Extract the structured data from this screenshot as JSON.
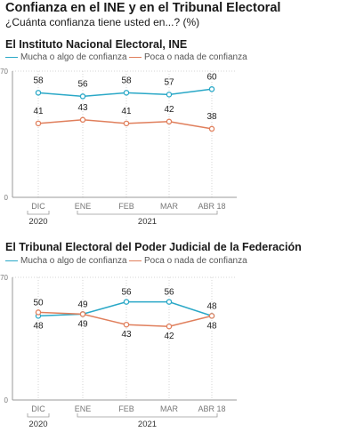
{
  "header": {
    "title": "Confianza en el INE y en el Tribunal Electoral",
    "subtitle": "¿Cuánta confianza tiene usted en...?  (%)"
  },
  "colors": {
    "series1": "#2aa8c7",
    "series2": "#e07f5c",
    "axis": "#9a9a9a",
    "grid": "#d4d4d4"
  },
  "chart_data": [
    {
      "type": "line",
      "title": "El Instituto Nacional Electoral, INE",
      "categories": [
        "DIC",
        "ENE",
        "FEB",
        "MAR",
        "ABR 18"
      ],
      "year_groups": [
        {
          "label": "2020",
          "categories": [
            "DIC"
          ]
        },
        {
          "label": "2021",
          "categories": [
            "ENE",
            "FEB",
            "MAR",
            "ABR 18"
          ]
        }
      ],
      "ylim": [
        0,
        70
      ],
      "yticks": [
        0,
        70
      ],
      "grid": true,
      "legend_placement": "top",
      "series": [
        {
          "name": "Mucha o algo de confianza",
          "color": "#2aa8c7",
          "values": [
            58,
            56,
            58,
            57,
            60
          ]
        },
        {
          "name": "Poca o nada de confianza",
          "color": "#e07f5c",
          "values": [
            41,
            43,
            41,
            42,
            38
          ]
        }
      ]
    },
    {
      "type": "line",
      "title": "El Tribunal Electoral del Poder Judicial de la Federación",
      "categories": [
        "DIC",
        "ENE",
        "FEB",
        "MAR",
        "ABR 18"
      ],
      "year_groups": [
        {
          "label": "2020",
          "categories": [
            "DIC"
          ]
        },
        {
          "label": "2021",
          "categories": [
            "ENE",
            "FEB",
            "MAR",
            "ABR 18"
          ]
        }
      ],
      "ylim": [
        0,
        70
      ],
      "yticks": [
        0,
        70
      ],
      "grid": true,
      "legend_placement": "top",
      "series": [
        {
          "name": "Mucha o algo de confianza",
          "color": "#2aa8c7",
          "values": [
            48,
            49,
            56,
            56,
            48
          ]
        },
        {
          "name": "Poca o nada de confianza",
          "color": "#e07f5c",
          "values": [
            50,
            49,
            43,
            42,
            48
          ]
        }
      ]
    }
  ]
}
